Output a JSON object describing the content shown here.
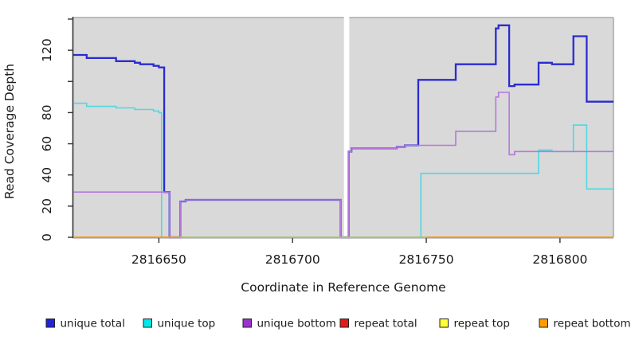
{
  "chart_data": {
    "type": "line",
    "subtype": "step-after",
    "title": "",
    "xlabel": "Coordinate in Reference Genome",
    "ylabel": "Read Coverage Depth",
    "xlim": [
      2816618,
      2816820
    ],
    "ylim": [
      0,
      141
    ],
    "grid": false,
    "panel_bg": "#d9d9d9",
    "spine_color": "#333333",
    "border_color": "#9e9e9e",
    "x_ticks": [
      2816650,
      2816700,
      2816750,
      2816800
    ],
    "x_tick_labels": [
      "2816650",
      "2816700",
      "2816750",
      "2816800"
    ],
    "y_ticks": [
      0,
      20,
      40,
      60,
      80,
      100,
      120,
      140
    ],
    "y_tick_labels": [
      "0",
      "20",
      "40",
      "60",
      "80",
      "",
      "120",
      ""
    ],
    "gap_band": {
      "x0": 2816719.2,
      "x1": 2816721.2,
      "color": "#ffffff"
    },
    "series": [
      {
        "name": "unique total",
        "slug": "unique-total",
        "color": "#2b2bd1",
        "width": 2.3,
        "points": [
          [
            2816618,
            117
          ],
          [
            2816623,
            115
          ],
          [
            2816634,
            113
          ],
          [
            2816641,
            112
          ],
          [
            2816643,
            111
          ],
          [
            2816648,
            110
          ],
          [
            2816650,
            109
          ],
          [
            2816652,
            29
          ],
          [
            2816654,
            0
          ],
          [
            2816658,
            23
          ],
          [
            2816660,
            24
          ],
          [
            2816718,
            0
          ],
          [
            2816721,
            55
          ],
          [
            2816722,
            57
          ],
          [
            2816739,
            58
          ],
          [
            2816742,
            59
          ],
          [
            2816747,
            101
          ],
          [
            2816761,
            111
          ],
          [
            2816776,
            134
          ],
          [
            2816777,
            136
          ],
          [
            2816781,
            97
          ],
          [
            2816783,
            98
          ],
          [
            2816792,
            112
          ],
          [
            2816797,
            111
          ],
          [
            2816805,
            129
          ],
          [
            2816810,
            87
          ],
          [
            2816820,
            87
          ]
        ]
      },
      {
        "name": "unique top",
        "slug": "unique-top",
        "color": "#4fd8e2",
        "width": 1.6,
        "points": [
          [
            2816618,
            86
          ],
          [
            2816623,
            84
          ],
          [
            2816634,
            83
          ],
          [
            2816641,
            82
          ],
          [
            2816648,
            81
          ],
          [
            2816650,
            80
          ],
          [
            2816651,
            0
          ],
          [
            2816748,
            41
          ],
          [
            2816792,
            56
          ],
          [
            2816797,
            55
          ],
          [
            2816805,
            72
          ],
          [
            2816810,
            31
          ],
          [
            2816820,
            31
          ]
        ]
      },
      {
        "name": "unique bottom",
        "slug": "unique-bottom",
        "color": "#b478dc",
        "width": 1.6,
        "points": [
          [
            2816618,
            29
          ],
          [
            2816654,
            0
          ],
          [
            2816658,
            23
          ],
          [
            2816660,
            24
          ],
          [
            2816718,
            0
          ],
          [
            2816721,
            55
          ],
          [
            2816722,
            57
          ],
          [
            2816739,
            58
          ],
          [
            2816742,
            59
          ],
          [
            2816761,
            68
          ],
          [
            2816776,
            90
          ],
          [
            2816777,
            93
          ],
          [
            2816781,
            53
          ],
          [
            2816783,
            55
          ],
          [
            2816820,
            55
          ]
        ]
      },
      {
        "name": "repeat total",
        "slug": "repeat-total",
        "color": "#dd2222",
        "width": 1.5,
        "points": [
          [
            2816618,
            0
          ],
          [
            2816820,
            0
          ]
        ]
      },
      {
        "name": "repeat top",
        "slug": "repeat-top",
        "color": "#f2f218",
        "width": 1.5,
        "points": [
          [
            2816618,
            0
          ],
          [
            2816820,
            0
          ]
        ]
      },
      {
        "name": "repeat bottom",
        "slug": "repeat-bottom",
        "color": "#ff9400",
        "width": 1.8,
        "points": [
          [
            2816618,
            0
          ],
          [
            2816820,
            0
          ]
        ]
      },
      {
        "name": "",
        "slug": "zero-baseline",
        "color": "#8fcf8f",
        "width": 1.4,
        "points": [
          [
            2816658,
            0
          ],
          [
            2816750,
            0
          ]
        ]
      }
    ],
    "legend": {
      "position": "bottom",
      "swatch_border": "#222222",
      "entries": [
        {
          "label": "unique total",
          "fill": "#2222dd"
        },
        {
          "label": "unique top",
          "fill": "#00e8e8"
        },
        {
          "label": "unique bottom",
          "fill": "#9933cc"
        },
        {
          "label": "repeat total",
          "fill": "#e31a1a"
        },
        {
          "label": "repeat top",
          "fill": "#ffff33"
        },
        {
          "label": "repeat bottom",
          "fill": "#ff9d00"
        }
      ]
    }
  },
  "layout_text": {
    "xlabel": "Coordinate in Reference Genome",
    "ylabel": "Read Coverage Depth"
  }
}
